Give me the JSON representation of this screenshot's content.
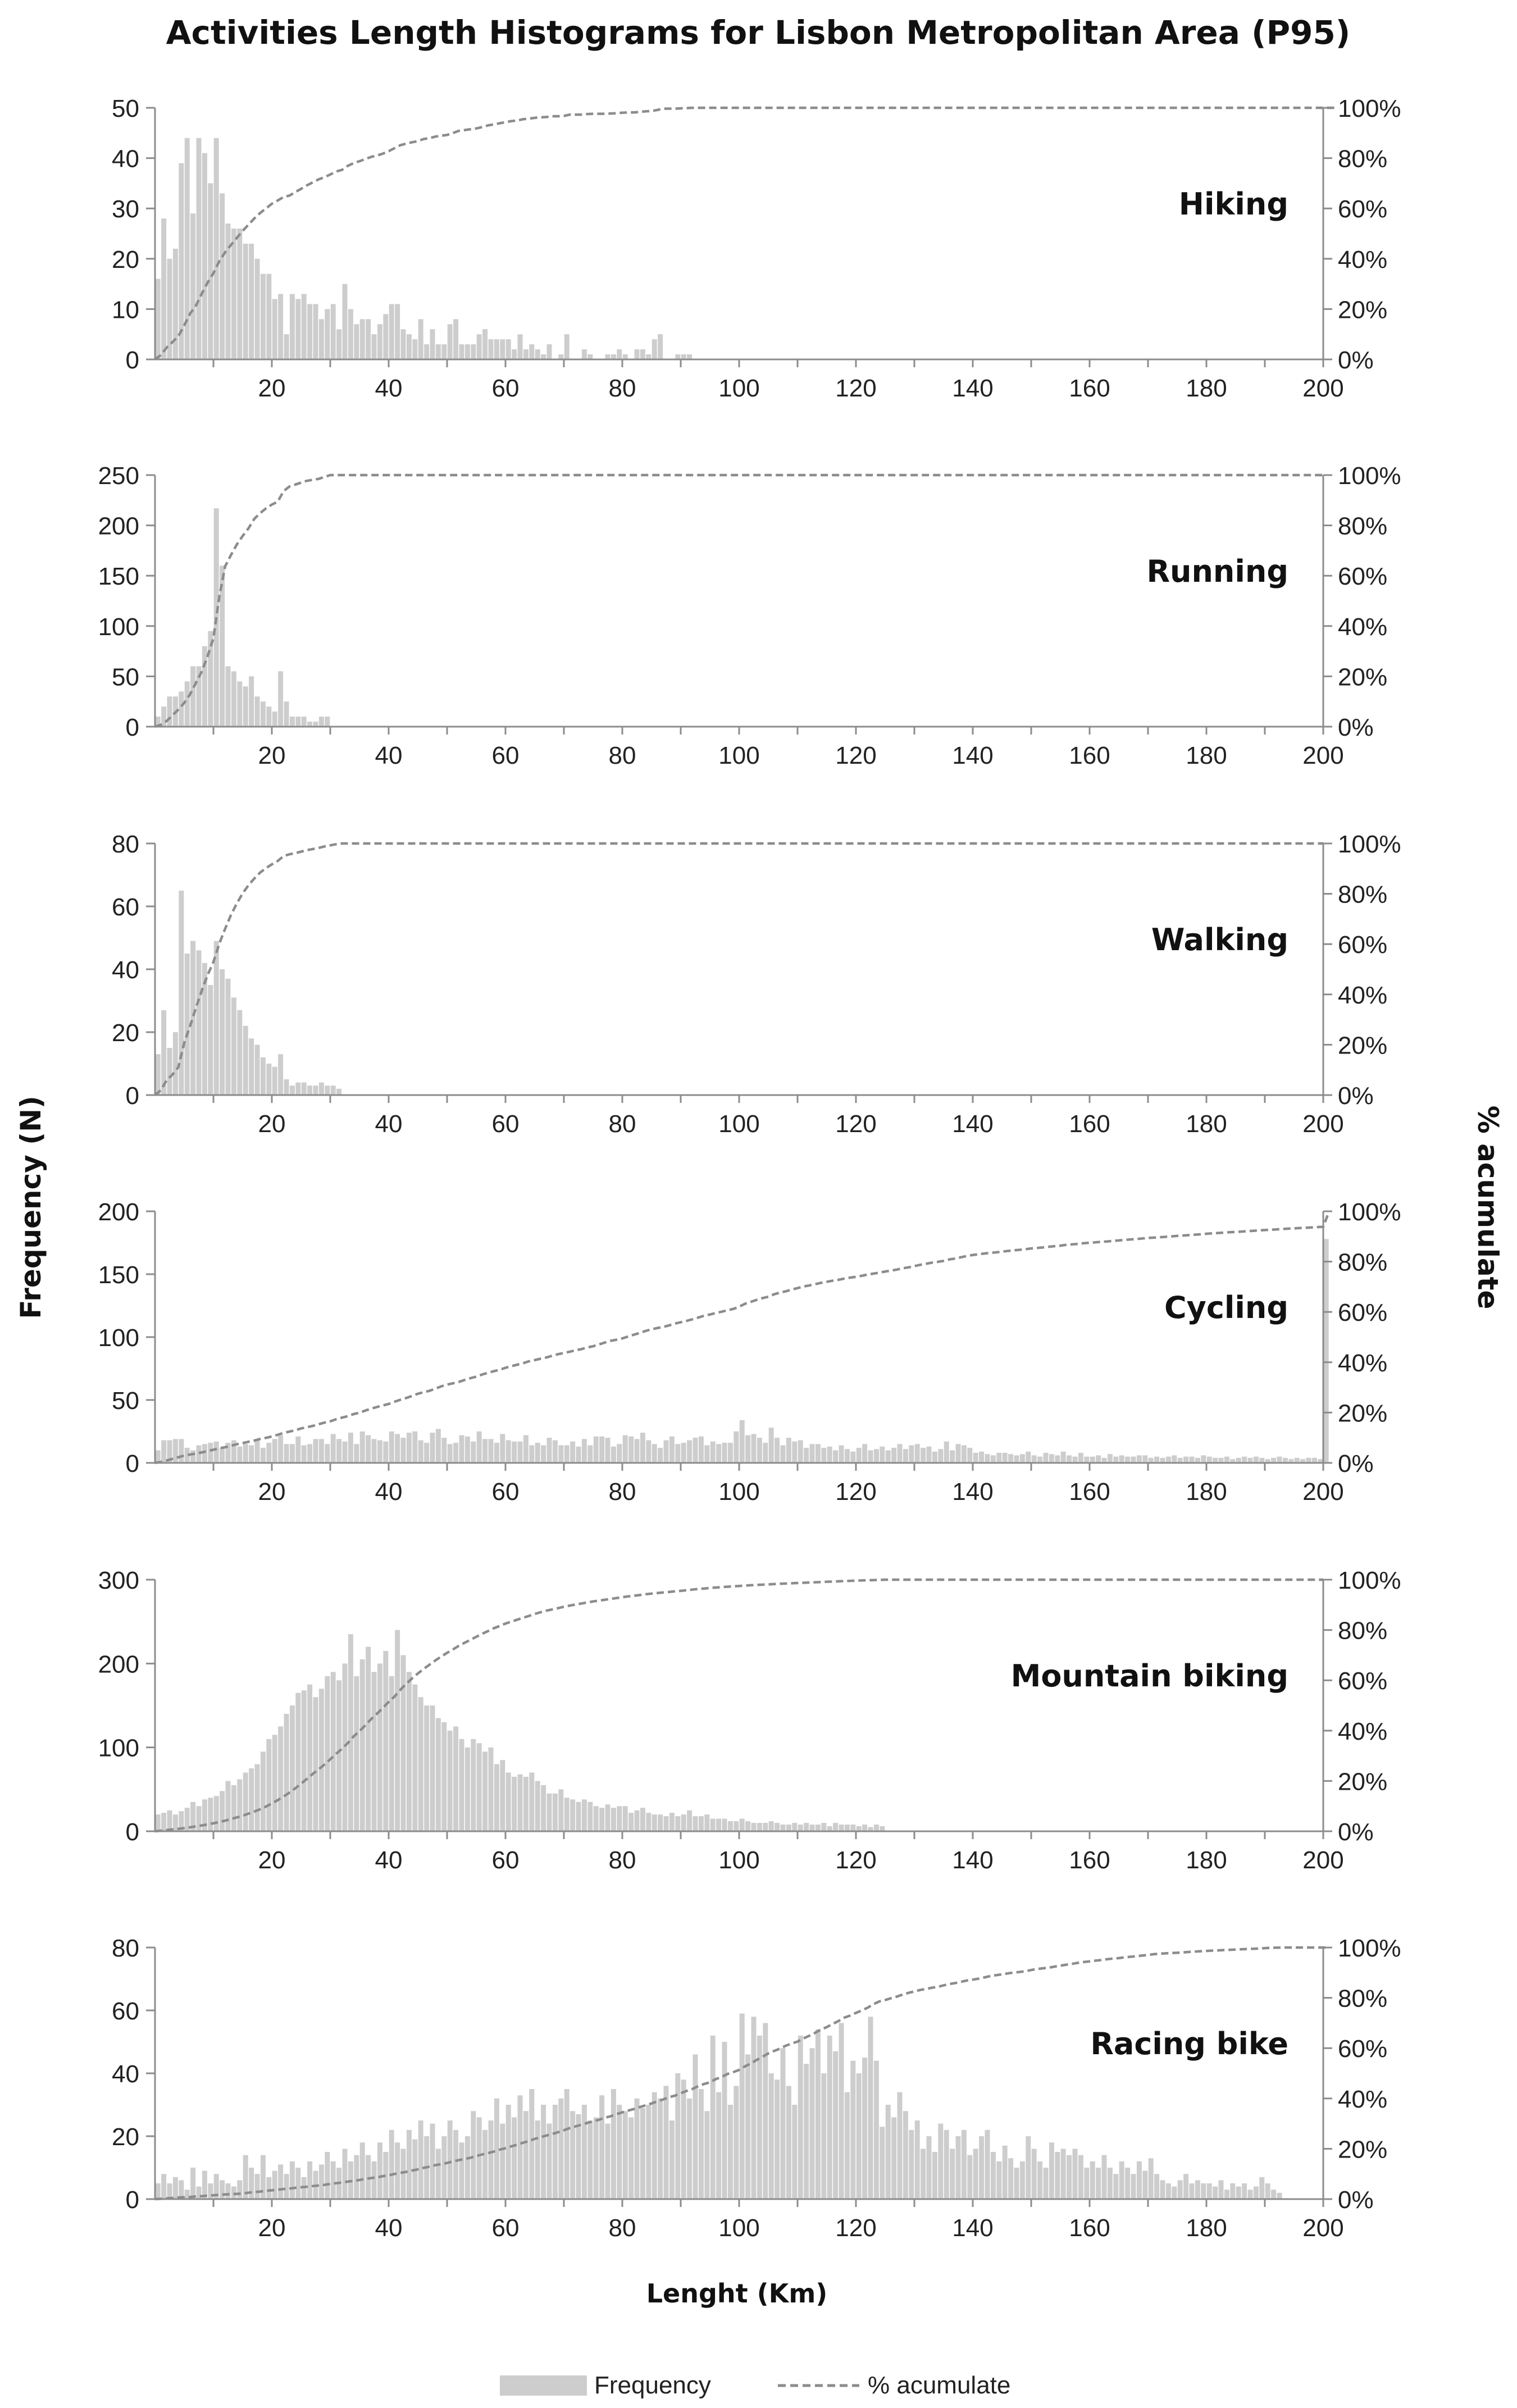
{
  "title": "Activities Length Histograms for Lisbon Metropolitan Area (P95)",
  "ylabel_left": "Frequency (N)",
  "ylabel_right": "% acumulate",
  "xlabel": "Lenght (Km)",
  "legend": {
    "frequency": "Frequency",
    "cumulative": "% acumulate"
  },
  "colors": {
    "bars": "#cdcdcd",
    "line": "#8c8c8c",
    "axis": "#8c8c8c",
    "text": "#1f1f1f"
  },
  "chart_data": [
    {
      "type": "bar",
      "label": "Hiking",
      "bin_width_km": 1,
      "xlim": [
        0,
        200
      ],
      "xticks": [
        20,
        40,
        60,
        80,
        100,
        120,
        140,
        160,
        180,
        200
      ],
      "ylim": [
        0,
        50
      ],
      "yticks": [
        0,
        10,
        20,
        30,
        40,
        50
      ],
      "y2ticks": [
        "0%",
        "20%",
        "40%",
        "60%",
        "80%",
        "100%"
      ],
      "values": [
        16,
        28,
        20,
        22,
        39,
        44,
        29,
        44,
        41,
        35,
        44,
        33,
        27,
        26,
        26,
        23,
        23,
        20,
        17,
        17,
        12,
        13,
        5,
        13,
        12,
        13,
        11,
        11,
        8,
        10,
        11,
        6,
        15,
        10,
        7,
        8,
        8,
        5,
        7,
        9,
        11,
        11,
        6,
        5,
        4,
        8,
        3,
        6,
        3,
        3,
        7,
        8,
        3,
        3,
        3,
        5,
        6,
        4,
        4,
        4,
        4,
        2,
        5,
        2,
        3,
        2,
        1,
        3,
        0,
        1,
        5,
        0,
        0,
        2,
        1,
        0,
        0,
        1,
        1,
        2,
        1,
        0,
        2,
        2,
        1,
        4,
        5,
        0,
        0,
        1,
        1,
        1,
        0,
        0,
        0,
        0,
        0,
        0,
        0,
        0,
        0,
        0,
        0,
        0,
        0,
        0,
        0,
        0,
        0,
        0,
        0,
        0,
        0,
        0,
        0,
        0,
        0,
        0,
        0,
        0,
        0,
        0,
        0,
        0,
        0,
        0,
        0,
        0,
        0,
        0,
        0,
        0,
        0,
        0,
        0,
        0,
        0,
        0,
        0,
        0,
        0,
        0,
        0,
        0,
        0,
        0,
        0,
        0,
        0,
        0,
        0,
        0,
        0,
        0,
        0,
        0,
        0,
        0,
        0,
        0,
        0,
        0,
        0,
        0,
        0,
        0,
        0,
        0,
        0,
        0,
        0,
        0,
        0,
        0,
        0,
        0,
        0,
        0,
        0,
        0,
        0,
        0,
        0,
        0,
        0,
        0,
        0,
        0,
        0,
        0,
        0,
        0,
        0,
        0,
        0,
        0,
        0,
        0,
        0,
        0,
        0,
        0
      ]
    },
    {
      "type": "bar",
      "label": "Running",
      "bin_width_km": 1,
      "xlim": [
        0,
        200
      ],
      "xticks": [
        20,
        40,
        60,
        80,
        100,
        120,
        140,
        160,
        180,
        200
      ],
      "ylim": [
        0,
        250
      ],
      "yticks": [
        0,
        50,
        100,
        150,
        200,
        250
      ],
      "y2ticks": [
        "0%",
        "20%",
        "40%",
        "60%",
        "80%",
        "100%"
      ],
      "values": [
        10,
        20,
        30,
        30,
        35,
        45,
        60,
        60,
        80,
        95,
        217,
        160,
        60,
        55,
        45,
        40,
        50,
        30,
        25,
        20,
        15,
        55,
        25,
        10,
        10,
        10,
        5,
        5,
        10,
        10,
        0,
        0,
        0,
        0,
        0,
        0,
        0,
        0,
        0,
        0,
        0,
        0,
        0,
        0,
        0,
        0,
        0,
        0,
        0,
        0,
        0,
        0,
        0,
        0,
        0,
        0,
        0,
        0,
        0,
        0,
        0,
        0,
        0,
        0,
        0,
        0,
        0,
        0,
        0,
        0,
        0,
        0,
        0,
        0,
        0,
        0,
        0,
        0,
        0,
        0,
        0,
        0,
        0,
        0,
        0,
        0,
        0,
        0,
        0,
        0,
        0,
        0,
        0,
        0,
        0,
        0,
        0,
        0,
        0,
        0,
        0,
        0,
        0,
        0,
        0,
        0,
        0,
        0,
        0,
        0,
        0,
        0,
        0,
        0,
        0,
        0,
        0,
        0,
        0,
        0,
        0,
        0,
        0,
        0,
        0,
        0,
        0,
        0,
        0,
        0,
        0,
        0,
        0,
        0,
        0,
        0,
        0,
        0,
        0,
        0,
        0,
        0,
        0,
        0,
        0,
        0,
        0,
        0,
        0,
        0,
        0,
        0,
        0,
        0,
        0,
        0,
        0,
        0,
        0,
        0,
        0,
        0,
        0,
        0,
        0,
        0,
        0,
        0,
        0,
        0,
        0,
        0,
        0,
        0,
        0,
        0,
        0,
        0,
        0,
        0,
        0,
        0,
        0,
        0,
        0,
        0,
        0,
        0,
        0,
        0,
        0,
        0,
        0,
        0,
        0,
        0,
        0,
        0,
        0,
        0
      ]
    },
    {
      "type": "bar",
      "label": "Walking",
      "bin_width_km": 1,
      "xlim": [
        0,
        200
      ],
      "xticks": [
        20,
        40,
        60,
        80,
        100,
        120,
        140,
        160,
        180,
        200
      ],
      "ylim": [
        0,
        80
      ],
      "yticks": [
        0,
        20,
        40,
        60,
        80
      ],
      "y2ticks": [
        "0%",
        "20%",
        "40%",
        "60%",
        "80%",
        "100%"
      ],
      "values": [
        13,
        27,
        15,
        20,
        65,
        45,
        49,
        46,
        42,
        35,
        49,
        40,
        37,
        31,
        27,
        22,
        18,
        16,
        12,
        10,
        9,
        13,
        5,
        3,
        4,
        4,
        3,
        3,
        4,
        3,
        3,
        2,
        0,
        0,
        0,
        0,
        0,
        0,
        0,
        0,
        0,
        0,
        0,
        0,
        0,
        0,
        0,
        0,
        0,
        0,
        0,
        0,
        0,
        0,
        0,
        0,
        0,
        0,
        0,
        0,
        0,
        0,
        0,
        0,
        0,
        0,
        0,
        0,
        0,
        0,
        0,
        0,
        0,
        0,
        0,
        0,
        0,
        0,
        0,
        0,
        0,
        0,
        0,
        0,
        0,
        0,
        0,
        0,
        0,
        0,
        0,
        0,
        0,
        0,
        0,
        0,
        0,
        0,
        0,
        0,
        0,
        0,
        0,
        0,
        0,
        0,
        0,
        0,
        0,
        0,
        0,
        0,
        0,
        0,
        0,
        0,
        0,
        0,
        0,
        0,
        0,
        0,
        0,
        0,
        0,
        0,
        0,
        0,
        0,
        0,
        0,
        0,
        0,
        0,
        0,
        0,
        0,
        0,
        0,
        0,
        0,
        0,
        0,
        0,
        0,
        0,
        0,
        0,
        0,
        0,
        0,
        0,
        0,
        0,
        0,
        0,
        0,
        0,
        0,
        0,
        0,
        0,
        0,
        0,
        0,
        0,
        0,
        0,
        0,
        0,
        0,
        0,
        0,
        0,
        0,
        0,
        0,
        0,
        0,
        0,
        0,
        0,
        0,
        0,
        0,
        0,
        0,
        0,
        0,
        0,
        0,
        0,
        0,
        0,
        0,
        0,
        0,
        0,
        0,
        0
      ]
    },
    {
      "type": "bar",
      "label": "Cycling",
      "bin_width_km": 1,
      "xlim": [
        0,
        200
      ],
      "xticks": [
        20,
        40,
        60,
        80,
        100,
        120,
        140,
        160,
        180,
        200
      ],
      "ylim": [
        0,
        200
      ],
      "yticks": [
        0,
        50,
        100,
        150,
        200
      ],
      "y2ticks": [
        "0%",
        "20%",
        "40%",
        "60%",
        "80%",
        "100%"
      ],
      "values": [
        10,
        18,
        18,
        19,
        19,
        12,
        10,
        14,
        15,
        16,
        17,
        12,
        16,
        18,
        13,
        15,
        14,
        19,
        12,
        16,
        19,
        22,
        15,
        15,
        21,
        14,
        15,
        19,
        19,
        15,
        23,
        19,
        17,
        24,
        15,
        25,
        22,
        19,
        18,
        17,
        25,
        23,
        20,
        24,
        25,
        18,
        16,
        24,
        27,
        20,
        15,
        16,
        22,
        21,
        17,
        25,
        19,
        19,
        16,
        23,
        18,
        17,
        17,
        22,
        14,
        16,
        14,
        20,
        18,
        14,
        14,
        17,
        13,
        19,
        14,
        21,
        21,
        20,
        13,
        15,
        22,
        21,
        19,
        24,
        18,
        15,
        12,
        18,
        21,
        15,
        16,
        18,
        20,
        21,
        14,
        17,
        15,
        16,
        16,
        25,
        34,
        22,
        23,
        20,
        16,
        28,
        20,
        14,
        20,
        17,
        18,
        12,
        15,
        15,
        12,
        13,
        10,
        14,
        11,
        9,
        12,
        15,
        10,
        11,
        13,
        10,
        12,
        15,
        11,
        14,
        15,
        12,
        13,
        9,
        11,
        17,
        10,
        15,
        14,
        12,
        8,
        9,
        7,
        6,
        8,
        8,
        7,
        6,
        7,
        9,
        6,
        5,
        8,
        7,
        6,
        9,
        6,
        5,
        8,
        5,
        5,
        6,
        4,
        7,
        5,
        6,
        5,
        5,
        6,
        6,
        4,
        5,
        4,
        5,
        6,
        4,
        5,
        5,
        4,
        6,
        5,
        4,
        4,
        5,
        3,
        4,
        5,
        4,
        5,
        4,
        3,
        4,
        5,
        4,
        3,
        4,
        3,
        4,
        4,
        3,
        178
      ]
    },
    {
      "type": "bar",
      "label": "Mountain biking",
      "bin_width_km": 1,
      "xlim": [
        0,
        200
      ],
      "xticks": [
        20,
        40,
        60,
        80,
        100,
        120,
        140,
        160,
        180,
        200
      ],
      "ylim": [
        0,
        300
      ],
      "yticks": [
        0,
        100,
        200,
        300
      ],
      "y2ticks": [
        "0%",
        "20%",
        "40%",
        "60%",
        "80%",
        "100%"
      ],
      "values": [
        20,
        22,
        25,
        20,
        24,
        28,
        35,
        30,
        38,
        40,
        42,
        48,
        60,
        55,
        62,
        70,
        75,
        80,
        95,
        110,
        115,
        125,
        140,
        150,
        165,
        168,
        175,
        160,
        170,
        185,
        190,
        180,
        200,
        235,
        185,
        205,
        220,
        190,
        200,
        215,
        185,
        240,
        210,
        190,
        175,
        160,
        150,
        150,
        135,
        130,
        120,
        125,
        110,
        100,
        110,
        105,
        95,
        100,
        80,
        85,
        70,
        65,
        68,
        65,
        70,
        60,
        55,
        45,
        45,
        50,
        40,
        38,
        35,
        38,
        35,
        30,
        28,
        32,
        28,
        30,
        30,
        22,
        25,
        28,
        22,
        20,
        20,
        18,
        22,
        18,
        20,
        25,
        18,
        18,
        20,
        15,
        15,
        15,
        12,
        12,
        15,
        12,
        10,
        10,
        10,
        12,
        10,
        8,
        8,
        10,
        8,
        10,
        8,
        8,
        10,
        6,
        10,
        8,
        8,
        8,
        6,
        8,
        5,
        8,
        6,
        0,
        0,
        0,
        0,
        0,
        0,
        0,
        0,
        0,
        0,
        0,
        0,
        0,
        0,
        0,
        0,
        0,
        0,
        0,
        0,
        0,
        0,
        0,
        0,
        0,
        0,
        0,
        0,
        0,
        0,
        0,
        0,
        0,
        0,
        0,
        0,
        0,
        0,
        0,
        0,
        0,
        0,
        0,
        0,
        0,
        0,
        0,
        0,
        0,
        0,
        0,
        0,
        0,
        0,
        0,
        0,
        0,
        0,
        0,
        0,
        0,
        0,
        0,
        0,
        0,
        0,
        0,
        0,
        0,
        0,
        0,
        0,
        0,
        0,
        0
      ]
    },
    {
      "type": "bar",
      "label": "Racing bike",
      "bin_width_km": 1,
      "xlim": [
        0,
        200
      ],
      "xticks": [
        20,
        40,
        60,
        80,
        100,
        120,
        140,
        160,
        180,
        200
      ],
      "ylim": [
        0,
        80
      ],
      "yticks": [
        0,
        20,
        40,
        60,
        80
      ],
      "y2ticks": [
        "0%",
        "20%",
        "40%",
        "60%",
        "80%",
        "100%"
      ],
      "values": [
        5,
        8,
        5,
        7,
        6,
        3,
        10,
        4,
        9,
        5,
        8,
        6,
        5,
        4,
        6,
        14,
        10,
        8,
        14,
        7,
        9,
        11,
        8,
        12,
        10,
        7,
        12,
        9,
        11,
        15,
        12,
        10,
        16,
        12,
        14,
        18,
        14,
        12,
        18,
        15,
        22,
        18,
        16,
        22,
        19,
        25,
        20,
        24,
        16,
        20,
        25,
        22,
        18,
        20,
        28,
        26,
        22,
        25,
        32,
        24,
        30,
        26,
        33,
        28,
        35,
        25,
        30,
        24,
        30,
        32,
        35,
        28,
        27,
        30,
        25,
        26,
        33,
        24,
        35,
        30,
        28,
        26,
        32,
        29,
        30,
        34,
        32,
        36,
        25,
        40,
        38,
        32,
        46,
        35,
        28,
        52,
        34,
        50,
        30,
        36,
        59,
        46,
        58,
        52,
        56,
        40,
        38,
        48,
        36,
        30,
        52,
        43,
        48,
        54,
        40,
        52,
        47,
        56,
        34,
        44,
        40,
        45,
        58,
        44,
        23,
        30,
        26,
        34,
        28,
        22,
        25,
        16,
        20,
        15,
        24,
        22,
        16,
        20,
        22,
        14,
        16,
        20,
        22,
        15,
        12,
        17,
        13,
        10,
        12,
        20,
        16,
        12,
        10,
        18,
        15,
        16,
        14,
        16,
        14,
        10,
        12,
        10,
        14,
        10,
        8,
        12,
        10,
        8,
        12,
        9,
        13,
        8,
        6,
        5,
        4,
        6,
        8,
        5,
        6,
        5,
        5,
        4,
        6,
        3,
        5,
        4,
        5,
        3,
        4,
        7,
        5,
        3,
        2,
        0,
        0,
        0,
        0,
        0,
        0,
        0,
        0
      ]
    }
  ]
}
